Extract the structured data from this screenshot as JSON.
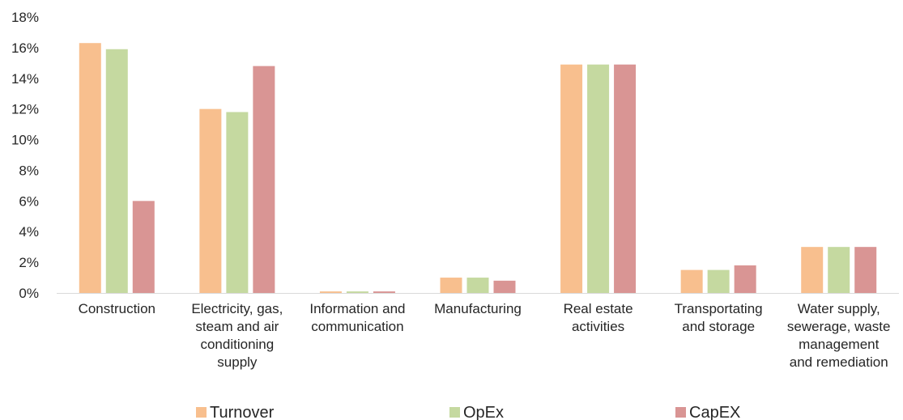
{
  "chart_data": {
    "type": "bar",
    "title": "",
    "xlabel": "",
    "ylabel": "",
    "ylim": [
      0,
      0.18
    ],
    "yticks": [
      "0%",
      "2%",
      "4%",
      "6%",
      "8%",
      "10%",
      "12%",
      "14%",
      "16%",
      "18%"
    ],
    "grid": false,
    "legend_position": "bottom",
    "categories": [
      "Construction",
      "Electricity, gas, steam and air conditioning supply",
      "Information and communication",
      "Manufacturing",
      "Real estate activities",
      "Transportating and storage",
      "Water supply, sewerage, waste management and remediation"
    ],
    "category_lines": [
      [
        "Construction"
      ],
      [
        "Electricity, gas,",
        "steam and air",
        "conditioning",
        "supply"
      ],
      [
        "Information and",
        "communication"
      ],
      [
        "Manufacturing"
      ],
      [
        "Real estate",
        "activities"
      ],
      [
        "Transportating",
        "and storage"
      ],
      [
        "Water supply,",
        "sewerage, waste",
        "management",
        "and remediation"
      ]
    ],
    "series": [
      {
        "name": "Turnover",
        "color": "#f8bf8e",
        "values": [
          0.163,
          0.12,
          0.001,
          0.01,
          0.149,
          0.015,
          0.03
        ]
      },
      {
        "name": "OpEx",
        "color": "#c5d9a0",
        "values": [
          0.159,
          0.118,
          0.001,
          0.01,
          0.149,
          0.015,
          0.03
        ]
      },
      {
        "name": "CapEX",
        "color": "#d99594",
        "values": [
          0.06,
          0.148,
          0.001,
          0.008,
          0.149,
          0.018,
          0.03
        ]
      }
    ]
  }
}
